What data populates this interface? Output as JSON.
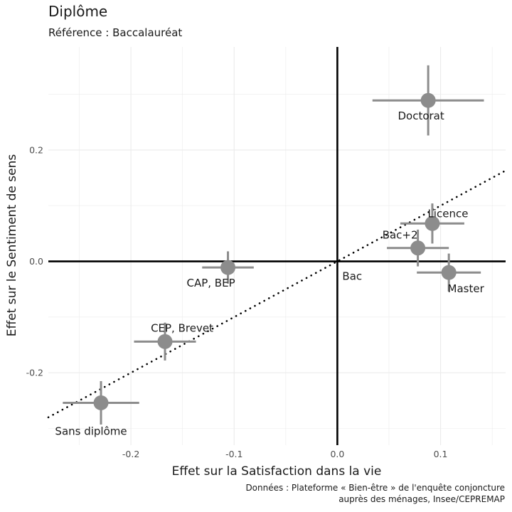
{
  "chart_data": {
    "type": "scatter",
    "title": "Diplôme",
    "subtitle": "Référence : Baccalauréat",
    "xlabel": "Effet sur la Satisfaction dans la vie",
    "ylabel": "Effet sur le Sentiment de sens",
    "xlim": [
      -0.28,
      0.163
    ],
    "ylim": [
      -0.33,
      0.385
    ],
    "x_ticks": [
      -0.2,
      -0.1,
      0.0,
      0.1
    ],
    "x_tick_labels": [
      "-0.2",
      "-0.1",
      "0.0",
      "0.1"
    ],
    "y_ticks": [
      -0.2,
      0.0,
      0.2
    ],
    "y_tick_labels": [
      "-0.2",
      "0.0",
      "0.2"
    ],
    "grid": true,
    "caption": [
      "Données : Plateforme « Bien-être » de l'enquête conjoncture",
      "auprès des ménages, Insee/CEPREMAP"
    ],
    "trend_line": {
      "style": "dotted",
      "slope": 1.0,
      "intercept": 0.0
    },
    "points": [
      {
        "label": "Doctorat",
        "x": 0.088,
        "y": 0.289,
        "x_lo": 0.034,
        "x_hi": 0.142,
        "y_lo": 0.226,
        "y_hi": 0.352
      },
      {
        "label": "Licence",
        "x": 0.092,
        "y": 0.068,
        "x_lo": 0.061,
        "x_hi": 0.123,
        "y_lo": 0.032,
        "y_hi": 0.104
      },
      {
        "label": "Bac+2",
        "x": 0.078,
        "y": 0.024,
        "x_lo": 0.048,
        "x_hi": 0.108,
        "y_lo": -0.009,
        "y_hi": 0.057
      },
      {
        "label": "Master",
        "x": 0.108,
        "y": -0.02,
        "x_lo": 0.077,
        "x_hi": 0.139,
        "y_lo": -0.054,
        "y_hi": 0.014
      },
      {
        "label": "Bac",
        "x": 0.0,
        "y": 0.0,
        "reference": true
      },
      {
        "label": "CAP, BEP",
        "x": -0.106,
        "y": -0.011,
        "x_lo": -0.131,
        "x_hi": -0.081,
        "y_lo": -0.04,
        "y_hi": 0.018
      },
      {
        "label": "CEP, Brevet",
        "x": -0.167,
        "y": -0.144,
        "x_lo": -0.197,
        "x_hi": -0.137,
        "y_lo": -0.178,
        "y_hi": -0.11
      },
      {
        "label": "Sans diplôme",
        "x": -0.229,
        "y": -0.254,
        "x_lo": -0.266,
        "x_hi": -0.192,
        "y_lo": -0.293,
        "y_hi": -0.215
      }
    ],
    "colors": {
      "point": "#8c8c8c",
      "grid": "#ebebeb",
      "axis_zero": "#000000",
      "text": "#1a1a1a",
      "tick": "#4d4d4d"
    }
  }
}
